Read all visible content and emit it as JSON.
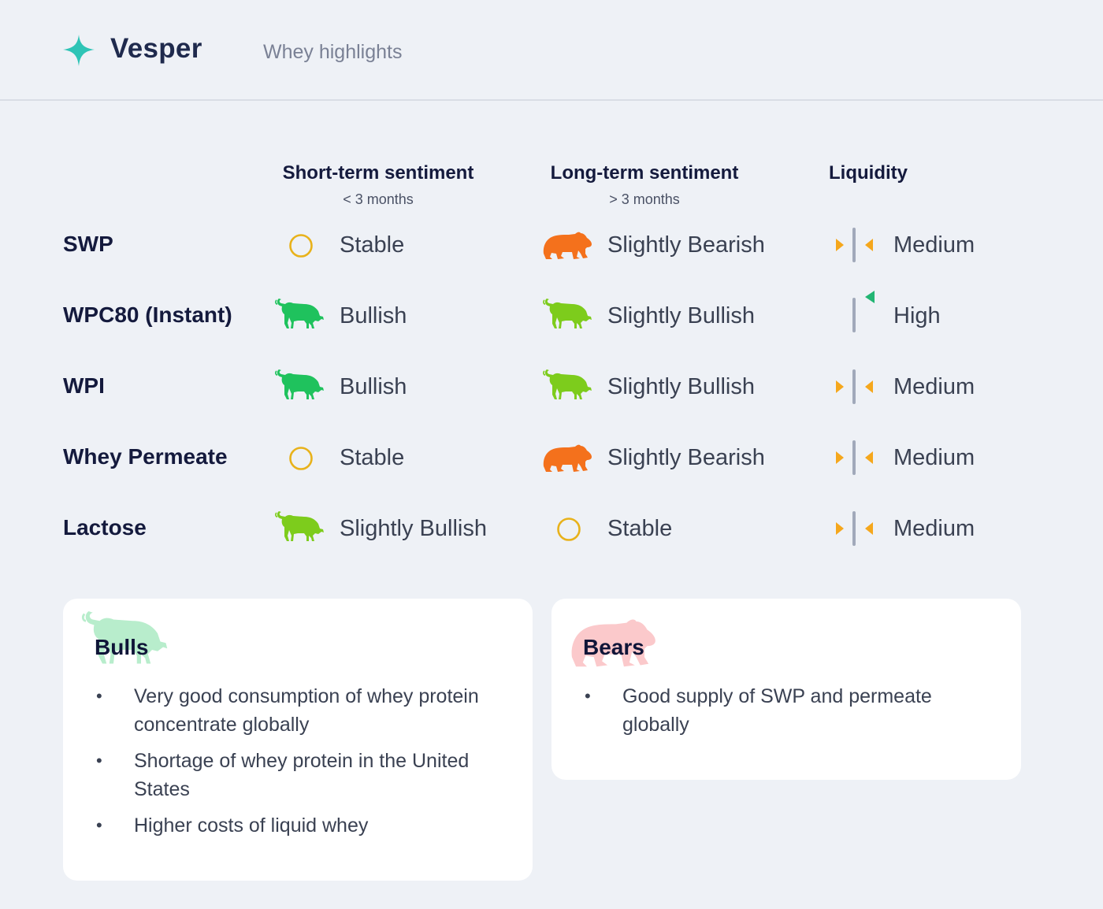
{
  "header": {
    "brand": "Vesper",
    "subtitle": "Whey highlights",
    "logo_icon": "sparkle-icon",
    "accent": "#2ec4b6"
  },
  "columns": [
    {
      "title": "Short-term sentiment",
      "sub": "< 3 months"
    },
    {
      "title": "Long-term sentiment",
      "sub": "> 3 months"
    },
    {
      "title": "Liquidity",
      "sub": ""
    }
  ],
  "rows": [
    {
      "product": "SWP",
      "short": {
        "icon": "stable-circle-icon",
        "label": "Stable"
      },
      "long": {
        "icon": "bear-icon",
        "label": "Slightly Bearish"
      },
      "liquidity": {
        "icon": "liquidity-medium-icon",
        "label": "Medium"
      }
    },
    {
      "product": "WPC80 (Instant)",
      "short": {
        "icon": "bull-icon",
        "label": "Bullish"
      },
      "long": {
        "icon": "bull-icon",
        "label": "Slightly Bullish"
      },
      "liquidity": {
        "icon": "liquidity-high-icon",
        "label": "High"
      }
    },
    {
      "product": "WPI",
      "short": {
        "icon": "bull-icon",
        "label": "Bullish"
      },
      "long": {
        "icon": "bull-icon",
        "label": "Slightly Bullish"
      },
      "liquidity": {
        "icon": "liquidity-medium-icon",
        "label": "Medium"
      }
    },
    {
      "product": "Whey Permeate",
      "short": {
        "icon": "stable-circle-icon",
        "label": "Stable"
      },
      "long": {
        "icon": "bear-icon",
        "label": "Slightly Bearish"
      },
      "liquidity": {
        "icon": "liquidity-medium-icon",
        "label": "Medium"
      }
    },
    {
      "product": "Lactose",
      "short": {
        "icon": "bull-icon",
        "label": "Slightly Bullish"
      },
      "long": {
        "icon": "stable-circle-icon",
        "label": "Stable"
      },
      "liquidity": {
        "icon": "liquidity-medium-icon",
        "label": "Medium"
      }
    }
  ],
  "colors": {
    "bullish": "#1fc25d",
    "slightly_bullish": "#7dcc1c",
    "bearish": "#f4711c",
    "stable": "#e8b21b",
    "liquidity_arrow": "#f5a71c",
    "liquidity_high_arrow": "#22b573",
    "liquidity_bar": "#a1a9ba"
  },
  "bulls": {
    "title": "Bulls",
    "icon": "bull-watermark-icon",
    "points": [
      "Very good consumption of whey protein concentrate globally",
      "Shortage of whey protein in the United States",
      "Higher costs of liquid whey"
    ]
  },
  "bears": {
    "title": "Bears",
    "icon": "bear-watermark-icon",
    "points": [
      "Good supply of SWP and permeate globally"
    ]
  }
}
